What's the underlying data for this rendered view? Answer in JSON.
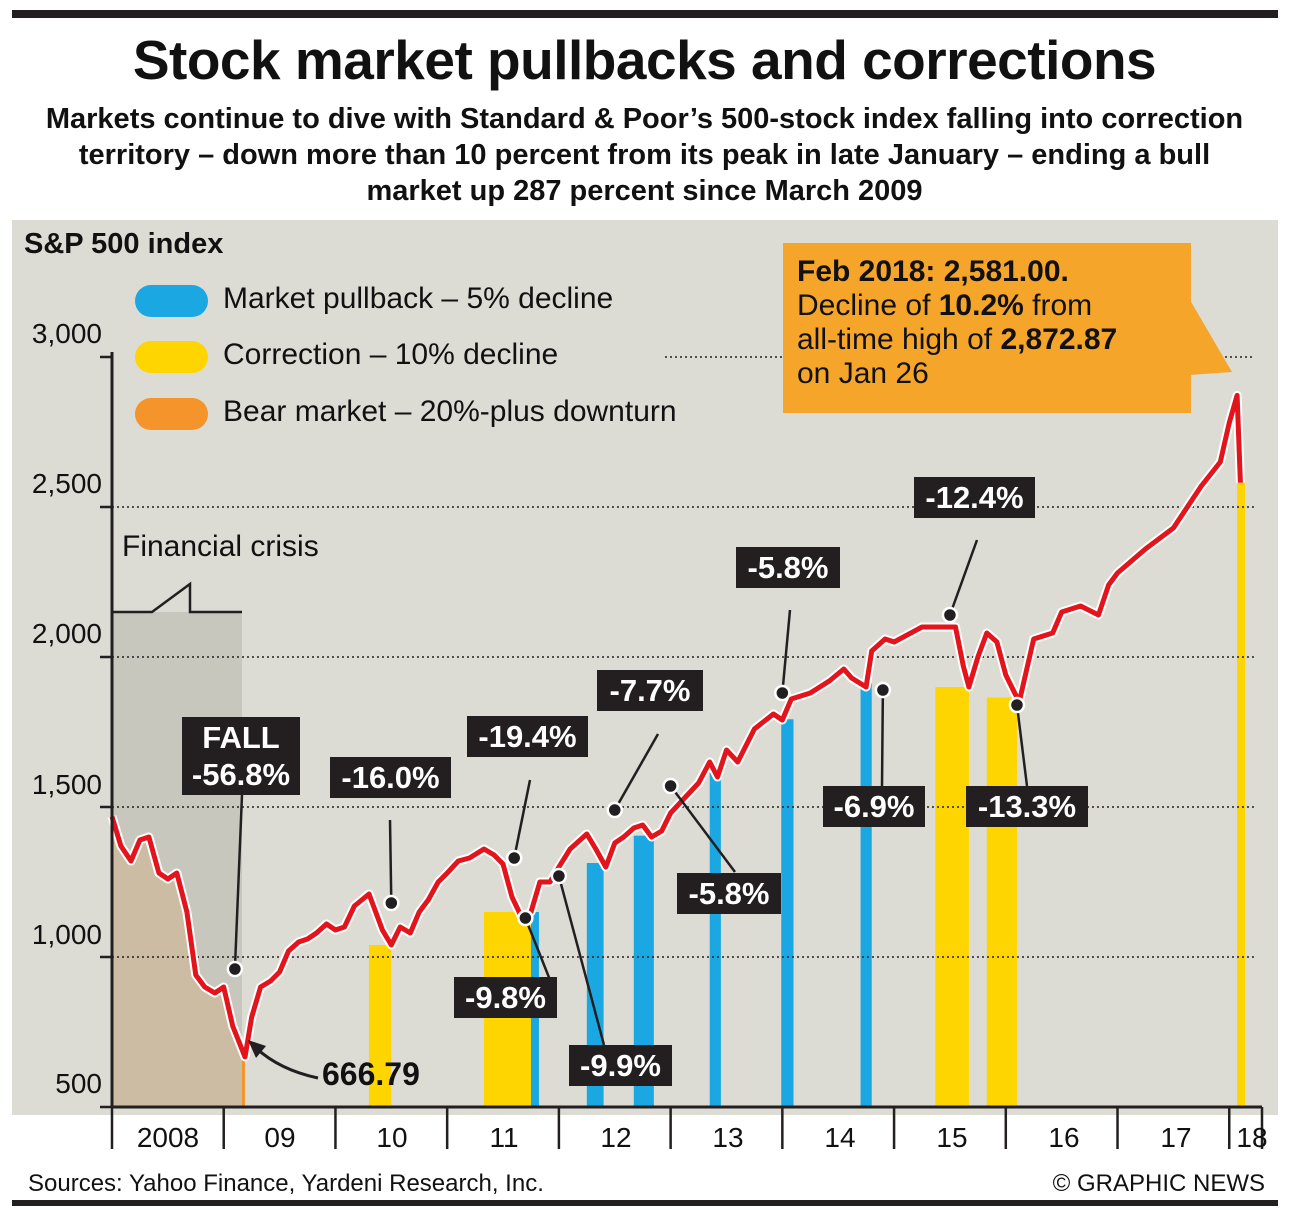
{
  "title": "Stock market pullbacks and corrections",
  "subtitle": "Markets continue to dive with Standard & Poor’s 500-stock index falling into correction territory – down more than 10 percent from its peak in late January – ending a bull market up 287 percent since March 2009",
  "legend": [
    {
      "label": "Market pullback – 5% decline",
      "color": "#1ba8e2"
    },
    {
      "label": "Correction – 10% decline",
      "color": "#ffd500"
    },
    {
      "label": "Bear market – 20%-plus downturn",
      "color": "#f4942a"
    }
  ],
  "info": {
    "headline": "Feb 2018: 2,581.00.",
    "line2_pre": "Decline of ",
    "line2_bold": "10.2%",
    "line2_post": " from",
    "line3_pre": "all-time high of ",
    "line3_bold": "2,872.87",
    "line4": "on Jan 26"
  },
  "annotations": {
    "fall_label": "FALL",
    "fall_value": "-56.8%",
    "low_value": "666.79",
    "crisis_label": "Financial crisis",
    "d2010": "-16.0%",
    "d2011a": "-19.4%",
    "d2011b": "-9.8%",
    "d2012a": "-7.7%",
    "d2012b": "-9.9%",
    "d2013a": "-5.8%",
    "d2013b": "-5.8%",
    "d2014": "-6.9%",
    "d2015": "-12.4%",
    "d2016": "-13.3%"
  },
  "footer": {
    "sources": "Sources: Yahoo Finance, Yardeni Research, Inc.",
    "credit": "© GRAPHIC NEWS"
  },
  "chart_data": {
    "type": "line",
    "title": "Stock market pullbacks and corrections",
    "ylabel": "S&P 500 index",
    "xlabel": "",
    "ylim": [
      500,
      3000
    ],
    "yticks": [
      500,
      1000,
      1500,
      2000,
      2500,
      3000
    ],
    "ytick_labels": [
      "500",
      "1,000",
      "1,500",
      "2,000",
      "2,500",
      "3,000"
    ],
    "xlim": [
      2008.0,
      2018.15
    ],
    "categories": [
      "2008",
      "09",
      "10",
      "11",
      "12",
      "13",
      "14",
      "15",
      "16",
      "17",
      "18"
    ],
    "series": [
      {
        "name": "S&P 500 index",
        "x": [
          2008.0,
          2008.08,
          2008.17,
          2008.25,
          2008.33,
          2008.42,
          2008.5,
          2008.58,
          2008.67,
          2008.75,
          2008.83,
          2008.92,
          2009.0,
          2009.08,
          2009.19,
          2009.25,
          2009.33,
          2009.42,
          2009.5,
          2009.58,
          2009.67,
          2009.75,
          2009.83,
          2009.92,
          2010.0,
          2010.08,
          2010.17,
          2010.3,
          2010.42,
          2010.5,
          2010.58,
          2010.67,
          2010.75,
          2010.83,
          2010.92,
          2011.0,
          2011.1,
          2011.2,
          2011.33,
          2011.42,
          2011.5,
          2011.58,
          2011.67,
          2011.75,
          2011.83,
          2011.92,
          2012.0,
          2012.1,
          2012.25,
          2012.33,
          2012.42,
          2012.5,
          2012.58,
          2012.67,
          2012.75,
          2012.83,
          2012.92,
          2013.0,
          2013.1,
          2013.25,
          2013.35,
          2013.42,
          2013.5,
          2013.6,
          2013.75,
          2013.92,
          2014.0,
          2014.08,
          2014.25,
          2014.42,
          2014.55,
          2014.62,
          2014.75,
          2014.8,
          2014.92,
          2015.0,
          2015.25,
          2015.42,
          2015.55,
          2015.62,
          2015.67,
          2015.75,
          2015.83,
          2015.92,
          2016.0,
          2016.08,
          2016.12,
          2016.25,
          2016.42,
          2016.5,
          2016.67,
          2016.83,
          2016.92,
          2017.0,
          2017.25,
          2017.5,
          2017.75,
          2017.92,
          2018.0,
          2018.07,
          2018.1
        ],
        "values": [
          1468,
          1370,
          1320,
          1390,
          1400,
          1280,
          1260,
          1280,
          1150,
          940,
          900,
          880,
          900,
          770,
          667,
          800,
          900,
          920,
          950,
          1020,
          1050,
          1060,
          1080,
          1110,
          1090,
          1100,
          1170,
          1210,
          1090,
          1040,
          1100,
          1080,
          1150,
          1190,
          1250,
          1280,
          1320,
          1330,
          1360,
          1340,
          1310,
          1200,
          1130,
          1150,
          1250,
          1250,
          1300,
          1360,
          1410,
          1360,
          1300,
          1380,
          1400,
          1430,
          1440,
          1400,
          1420,
          1480,
          1520,
          1580,
          1650,
          1600,
          1690,
          1650,
          1760,
          1810,
          1790,
          1860,
          1880,
          1920,
          1960,
          1930,
          1900,
          2020,
          2060,
          2050,
          2100,
          2100,
          2100,
          1970,
          1900,
          2000,
          2080,
          2050,
          1940,
          1880,
          1850,
          2060,
          2080,
          2150,
          2170,
          2140,
          2240,
          2280,
          2360,
          2430,
          2570,
          2650,
          2780,
          2872,
          2581
        ]
      }
    ],
    "highlights": [
      {
        "type": "bear",
        "start": 2008.0,
        "end": 2009.19
      },
      {
        "type": "correction",
        "start": 2010.3,
        "end": 2010.5
      },
      {
        "type": "correction",
        "start": 2011.33,
        "end": 2011.75
      },
      {
        "type": "pullback",
        "start": 2011.75,
        "end": 2011.82
      },
      {
        "type": "pullback",
        "start": 2012.25,
        "end": 2012.4
      },
      {
        "type": "pullback",
        "start": 2012.67,
        "end": 2012.85
      },
      {
        "type": "pullback",
        "start": 2013.35,
        "end": 2013.45
      },
      {
        "type": "pullback",
        "start": 2013.99,
        "end": 2014.1
      },
      {
        "type": "pullback",
        "start": 2014.7,
        "end": 2014.8
      },
      {
        "type": "correction",
        "start": 2015.37,
        "end": 2015.67
      },
      {
        "type": "correction",
        "start": 2015.83,
        "end": 2016.1
      },
      {
        "type": "correction",
        "start": 2018.07,
        "end": 2018.1
      }
    ],
    "highlight_colors": {
      "bear": "#f4942a",
      "correction": "#ffd500",
      "pullback": "#1ba8e2"
    },
    "annotations": [
      {
        "text": "FALL -56.8%",
        "x": 2009.1,
        "y": 960
      },
      {
        "text": "-16.0%",
        "x": 2010.5,
        "y": 1180
      },
      {
        "text": "-19.4%",
        "x": 2011.6,
        "y": 1330
      },
      {
        "text": "-9.8%",
        "x": 2011.7,
        "y": 1130
      },
      {
        "text": "-7.7%",
        "x": 2012.5,
        "y": 1490
      },
      {
        "text": "-9.9%",
        "x": 2012.0,
        "y": 1270
      },
      {
        "text": "-5.8%",
        "x": 2014.0,
        "y": 1880
      },
      {
        "text": "-5.8%",
        "x": 2013.0,
        "y": 1570
      },
      {
        "text": "-6.9%",
        "x": 2014.9,
        "y": 1890
      },
      {
        "text": "-12.4%",
        "x": 2015.5,
        "y": 2140
      },
      {
        "text": "-13.3%",
        "x": 2016.1,
        "y": 1840
      },
      {
        "text": "666.79",
        "x": 2009.19,
        "y": 667
      },
      {
        "text": "Feb 2018: 2,581.00",
        "x": 2018.1,
        "y": 2581
      }
    ]
  }
}
